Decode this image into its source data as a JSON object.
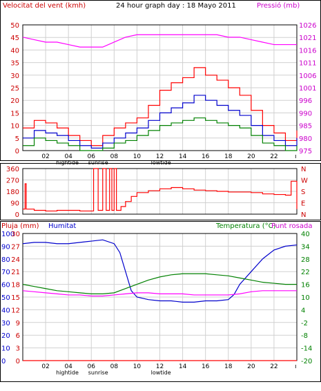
{
  "header": {
    "left_label": "Velocitat del vent (kmh)",
    "center_title": "24 hour graph day : 18 Mayo 2011",
    "right_label": "Pressió (mb)"
  },
  "bottom_header": {
    "rain_label": "Pluja (mm)",
    "humidity_label": "Humitat",
    "temperature_label": "Temperatura (°C)",
    "dew_label": "Punt rosada"
  },
  "x_ticks": [
    "02",
    "04",
    "06",
    "08",
    "10",
    "12",
    "14",
    "16",
    "18",
    "20",
    "22"
  ],
  "x_notes": [
    {
      "text": "hightide",
      "hour": 3.9
    },
    {
      "text": "sunrise",
      "hour": 6.6
    },
    {
      "text": "lowtide",
      "hour": 12.1
    }
  ],
  "colors": {
    "wind_gust": "#ff0000",
    "wind_avg": "#0000cc",
    "wind_min": "#008000",
    "pressure": "#ff00ff",
    "direction": "#ff0000",
    "humidity": "#0000cc",
    "temperature": "#008000",
    "dew_point": "#ff00ff",
    "rain": "#ff0000",
    "grid": "#d0d0d0"
  },
  "chart_data": [
    {
      "type": "line",
      "ylim": [
        0,
        50
      ],
      "y2lim": [
        975,
        1026
      ],
      "y_ticks": [
        "0",
        "5",
        "10",
        "15",
        "20",
        "25",
        "30",
        "35",
        "40",
        "45",
        "50"
      ],
      "y2_ticks": [
        "975",
        "980",
        "985",
        "990",
        "996",
        "1001",
        "1006",
        "1011",
        "1016",
        "1021",
        "1026"
      ],
      "series": [
        {
          "key": "wind_gust",
          "x": [
            0,
            1,
            2,
            3,
            4,
            5,
            6,
            7,
            8,
            9,
            10,
            11,
            12,
            13,
            14,
            15,
            16,
            17,
            18,
            19,
            20,
            21,
            22,
            23,
            24
          ],
          "values": [
            9,
            12,
            11,
            9,
            6,
            4,
            2,
            6,
            9,
            11,
            13,
            18,
            24,
            27,
            29,
            33,
            30,
            28,
            25,
            22,
            16,
            10,
            7,
            4,
            8
          ]
        },
        {
          "key": "wind_avg",
          "x": [
            0,
            1,
            2,
            3,
            4,
            5,
            6,
            7,
            8,
            9,
            10,
            11,
            12,
            13,
            14,
            15,
            16,
            17,
            18,
            19,
            20,
            21,
            22,
            23,
            24
          ],
          "values": [
            5,
            8,
            7,
            6,
            4,
            2,
            1,
            3,
            5,
            7,
            9,
            12,
            15,
            17,
            19,
            22,
            20,
            18,
            16,
            14,
            10,
            6,
            4,
            2,
            5
          ]
        },
        {
          "key": "wind_min",
          "x": [
            0,
            1,
            2,
            3,
            4,
            5,
            6,
            7,
            8,
            9,
            10,
            11,
            12,
            13,
            14,
            15,
            16,
            17,
            18,
            19,
            20,
            21,
            22,
            23,
            24
          ],
          "values": [
            2,
            5,
            4,
            3,
            2,
            0,
            0,
            1,
            3,
            4,
            6,
            8,
            10,
            11,
            12,
            13,
            12,
            11,
            10,
            9,
            6,
            3,
            2,
            0,
            2
          ]
        },
        {
          "key": "pressure",
          "x": [
            0,
            1,
            2,
            3,
            4,
            5,
            6,
            7,
            8,
            9,
            10,
            11,
            12,
            13,
            14,
            15,
            16,
            17,
            18,
            19,
            20,
            21,
            22,
            23,
            24
          ],
          "values": [
            1021,
            1020,
            1019,
            1019,
            1018,
            1017,
            1017,
            1017,
            1019,
            1021,
            1022,
            1022,
            1022,
            1022,
            1022,
            1022,
            1022,
            1022,
            1021,
            1021,
            1020,
            1019,
            1018,
            1018,
            1018
          ]
        }
      ]
    },
    {
      "type": "line",
      "ylim": [
        0,
        360
      ],
      "y_ticks": [
        "0",
        "90",
        "180",
        "270",
        "360"
      ],
      "right_labels": [
        "N",
        "W",
        "S",
        "E",
        "N"
      ],
      "series": [
        {
          "key": "direction",
          "x": [
            0,
            0.2,
            0.3,
            1,
            2,
            3,
            4,
            5,
            6,
            6.2,
            6.6,
            7,
            7.3,
            7.6,
            7.8,
            8,
            8.2,
            8.6,
            9,
            9.5,
            10,
            11,
            12,
            13,
            14,
            15,
            16,
            17,
            18,
            19,
            20,
            21,
            22,
            23,
            23.5,
            24
          ],
          "values": [
            40,
            240,
            40,
            30,
            25,
            30,
            30,
            25,
            25,
            360,
            30,
            360,
            30,
            360,
            30,
            360,
            30,
            60,
            100,
            140,
            170,
            185,
            200,
            210,
            200,
            190,
            185,
            180,
            175,
            175,
            170,
            160,
            155,
            150,
            260,
            40
          ]
        }
      ]
    },
    {
      "type": "line",
      "ylim": [
        0,
        100
      ],
      "y_ticks": [
        "0",
        "10",
        "20",
        "30",
        "40",
        "50",
        "60",
        "70",
        "80",
        "90",
        "100"
      ],
      "y_rain_ticks": [
        "0",
        "3",
        "6",
        "9",
        "12",
        "15",
        "18",
        "21",
        "24",
        "27",
        "30"
      ],
      "y_temp_ticks": [
        "-20",
        "-14",
        "-8",
        "-2",
        "4",
        "10",
        "16",
        "22",
        "28",
        "34",
        "40"
      ],
      "series": [
        {
          "key": "humidity",
          "x": [
            0,
            1,
            2,
            3,
            4,
            5,
            6,
            7,
            8,
            8.5,
            9,
            9.5,
            10,
            11,
            12,
            13,
            14,
            15,
            16,
            17,
            18,
            18.5,
            19,
            20,
            21,
            22,
            23,
            24
          ],
          "values": [
            92,
            93,
            93,
            92,
            92,
            93,
            94,
            95,
            92,
            85,
            70,
            55,
            50,
            48,
            47,
            47,
            46,
            46,
            47,
            47,
            48,
            52,
            60,
            70,
            80,
            87,
            90,
            91
          ]
        },
        {
          "key": "temperature",
          "x": [
            0,
            1,
            2,
            3,
            4,
            5,
            6,
            7,
            8,
            9,
            10,
            11,
            12,
            13,
            14,
            15,
            16,
            17,
            18,
            19,
            20,
            21,
            22,
            23,
            24
          ],
          "values": [
            16,
            15,
            14,
            13,
            12.5,
            12,
            11.5,
            11.5,
            12,
            14,
            16,
            18,
            19.5,
            20.5,
            21,
            21,
            21,
            20.5,
            20,
            19,
            18,
            17,
            16.5,
            16,
            16
          ]
        },
        {
          "key": "dew_point",
          "x": [
            0,
            1,
            2,
            3,
            4,
            5,
            6,
            7,
            8,
            9,
            10,
            11,
            12,
            13,
            14,
            15,
            16,
            17,
            18,
            19,
            20,
            21,
            22,
            23,
            24
          ],
          "values": [
            13,
            12.5,
            12,
            11.5,
            11,
            11,
            10.5,
            10.5,
            11,
            11.5,
            12,
            12,
            11.5,
            11.5,
            11.5,
            11,
            11,
            11,
            11,
            11.5,
            12.5,
            13,
            13,
            13,
            13
          ]
        },
        {
          "key": "rain",
          "x": [
            0,
            24
          ],
          "values": [
            0,
            0
          ]
        }
      ]
    }
  ]
}
